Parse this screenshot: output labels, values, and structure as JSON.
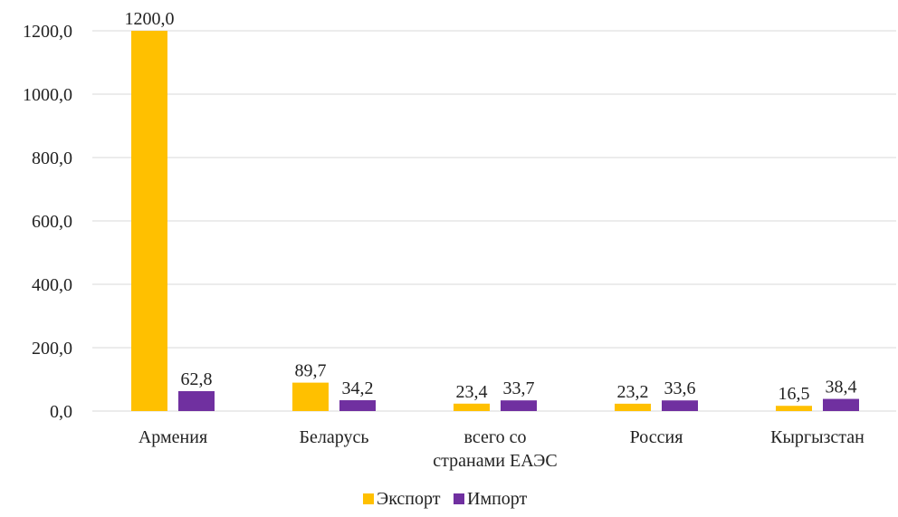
{
  "chart_data": {
    "type": "bar",
    "categories": [
      "Армения",
      "Беларусь",
      "всего со странами ЕАЭС",
      "Россия",
      "Кыргызстан"
    ],
    "series": [
      {
        "name": "Экспорт",
        "color": "#ffc000",
        "values": [
          1200.0,
          89.7,
          23.4,
          23.2,
          16.5
        ],
        "value_labels": [
          "1200,0",
          "89,7",
          "23,4",
          "23,2",
          "16,5"
        ]
      },
      {
        "name": "Импорт",
        "color": "#7030a0",
        "values": [
          62.8,
          34.2,
          33.7,
          33.6,
          38.4
        ],
        "value_labels": [
          "62,8",
          "34,2",
          "33,7",
          "33,6",
          "38,4"
        ]
      }
    ],
    "ylim": [
      0,
      1200
    ],
    "yticks": [
      {
        "value": 0,
        "label": "0,0"
      },
      {
        "value": 200,
        "label": "200,0"
      },
      {
        "value": 400,
        "label": "400,0"
      },
      {
        "value": 600,
        "label": "600,0"
      },
      {
        "value": 800,
        "label": "800,0"
      },
      {
        "value": 1000,
        "label": "1000,0"
      },
      {
        "value": 1200,
        "label": "1200,0"
      }
    ],
    "grid": true,
    "legend": "bottom"
  }
}
